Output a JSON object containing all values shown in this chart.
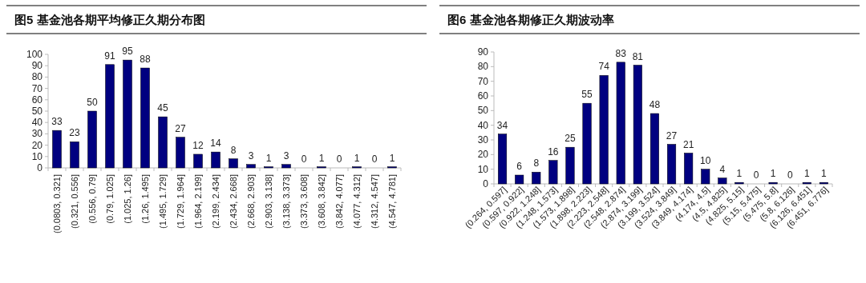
{
  "chart_data": [
    {
      "type": "bar",
      "title": "图5  基金池各期平均修正久期分布图",
      "categories": [
        "(0.0803, 0.321]",
        "(0.321, 0.556]",
        "(0.556, 0.79]",
        "(0.79, 1.025]",
        "(1.025, 1.26]",
        "(1.26, 1.495]",
        "(1.495, 1.729]",
        "(1.729, 1.964]",
        "(1.964, 2.199]",
        "(2.199, 2.434]",
        "(2.434, 2.668]",
        "(2.668, 2.903]",
        "(2.903, 3.138]",
        "(3.138, 3.373]",
        "(3.373, 3.608]",
        "(3.608, 3.842]",
        "(3.842, 4.077]",
        "(4.077, 4.312]",
        "(4.312, 4.547]",
        "(4.547, 4.781]"
      ],
      "values": [
        33,
        23,
        50,
        91,
        95,
        88,
        45,
        27,
        12,
        14,
        8,
        3,
        1,
        3,
        0,
        1,
        0,
        1,
        0,
        1
      ],
      "color": "#000080",
      "ylim": [
        0,
        100
      ],
      "yticks": [
        0,
        10,
        20,
        30,
        40,
        50,
        60,
        70,
        80,
        90,
        100
      ],
      "data_labels": true
    },
    {
      "type": "bar",
      "title": "图6  基金池各期修正久期波动率",
      "categories": [
        "(0.264, 0.597]",
        "(0.597, 0.922]",
        "(0.922, 1.248]",
        "(1.248, 1.573]",
        "(1.573, 1.898]",
        "(1.898, 2.223]",
        "(2.223, 2.548]",
        "(2.548, 2.874]",
        "(2.874, 3.199]",
        "(3.199, 3.524]",
        "(3.524, 3.849]",
        "(3.849, 4.174]",
        "(4.174, 4.5]",
        "(4.5, 4.825]",
        "(4.825, 5.15]",
        "(5.15, 5.475]",
        "(5.475, 5.8]",
        "(5.8, 6.126]",
        "(6.126, 6.451]",
        "(6.451, 6.776]"
      ],
      "values": [
        34,
        6,
        8,
        16,
        25,
        55,
        74,
        83,
        81,
        48,
        27,
        21,
        10,
        4,
        1,
        0,
        1,
        0,
        1,
        1
      ],
      "color": "#000080",
      "ylim": [
        0,
        90
      ],
      "yticks": [
        0,
        10,
        20,
        30,
        40,
        50,
        60,
        70,
        80,
        90
      ],
      "data_labels": true
    }
  ]
}
